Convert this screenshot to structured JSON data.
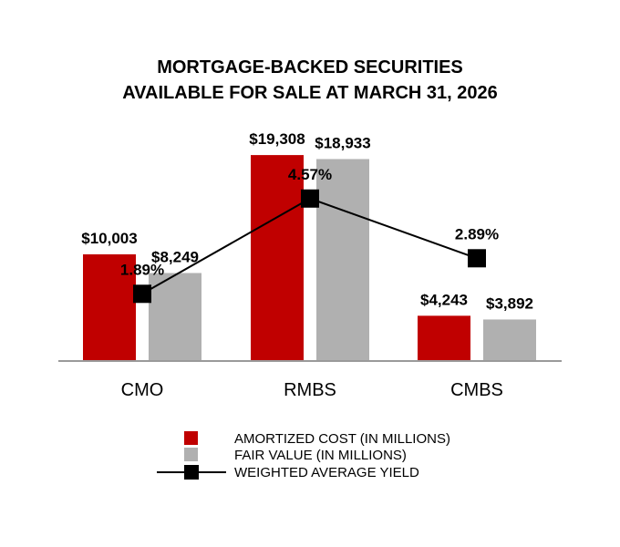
{
  "chart_data": {
    "type": "bar",
    "title_lines": [
      "MORTGAGE-BACKED SECURITIES",
      "AVAILABLE FOR SALE AT MARCH 31, 2026"
    ],
    "categories": [
      "CMO",
      "RMBS",
      "CMBS"
    ],
    "series": [
      {
        "name": "AMORTIZED COST (IN MILLIONS)",
        "type": "bar",
        "color": "#c00000",
        "values": [
          10003,
          19308,
          4243
        ],
        "labels": [
          "$10,003",
          "$19,308",
          "$4,243"
        ]
      },
      {
        "name": "FAIR VALUE (IN MILLIONS)",
        "type": "bar",
        "color": "#b0b0b0",
        "values": [
          8249,
          18933,
          3892
        ],
        "labels": [
          "$8,249",
          "$18,933",
          "$3,892"
        ]
      },
      {
        "name": "WEIGHTED AVERAGE YIELD",
        "type": "line",
        "color": "#000000",
        "values": [
          1.89,
          4.57,
          2.89
        ],
        "labels": [
          "1.89%",
          "4.57%",
          "2.89%"
        ]
      }
    ],
    "ylim": [
      0,
      20000
    ],
    "y2lim": [
      0,
      6
    ],
    "grid": false,
    "legend_position": "bottom"
  }
}
